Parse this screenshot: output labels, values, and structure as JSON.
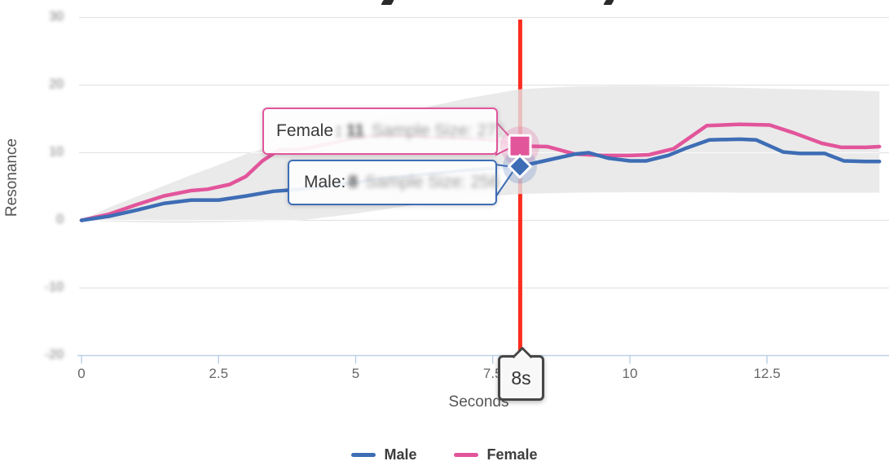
{
  "page": {
    "background": "#ffffff",
    "description": "Line chart of Resonance over Seconds for Male and Female series with confidence band, crosshair at 8 seconds and value tooltips"
  },
  "chart_data": {
    "type": "line",
    "title": "",
    "xlabel": "Seconds",
    "ylabel": "Resonance",
    "xlim": [
      0,
      14.55
    ],
    "ylim": [
      -20,
      30
    ],
    "grid": true,
    "legend_position": "bottom",
    "x_ticks": [
      {
        "label": "0",
        "value": 0
      },
      {
        "label": "2.5",
        "value": 2.5
      },
      {
        "label": "5",
        "value": 5
      },
      {
        "label": "7.5",
        "value": 7.5
      },
      {
        "label": "10",
        "value": 10
      },
      {
        "label": "12.5",
        "value": 12.5
      }
    ],
    "y_ticks": [
      {
        "label": "30",
        "value": 30
      },
      {
        "label": "20",
        "value": 20
      },
      {
        "label": "10",
        "value": 10
      },
      {
        "label": "0",
        "value": 0
      },
      {
        "label": "-10",
        "value": -10
      },
      {
        "label": "-20",
        "value": -20
      }
    ],
    "series": [
      {
        "name": "Male",
        "color": "#3e6db5",
        "x": [
          0,
          0.5,
          1,
          1.5,
          2,
          2.5,
          3,
          3.5,
          4,
          4.5,
          5,
          5.5,
          6,
          6.5,
          7,
          7.5,
          8,
          8.5,
          9,
          9.25,
          9.6,
          10,
          10.3,
          10.7,
          11,
          11.45,
          12,
          12.3,
          12.8,
          13.1,
          13.55,
          13.9,
          14.3,
          14.55
        ],
        "values": [
          0,
          0.6,
          1.5,
          2.5,
          3.0,
          3.0,
          3.6,
          4.3,
          4.6,
          5.1,
          5.6,
          6.2,
          6.6,
          7.0,
          7.4,
          7.7,
          8.0,
          8.9,
          9.8,
          10.0,
          9.2,
          8.8,
          8.8,
          9.6,
          10.6,
          11.9,
          12.0,
          11.9,
          10.1,
          9.9,
          9.9,
          8.8,
          8.7,
          8.7
        ]
      },
      {
        "name": "Female",
        "color": "#e2559b",
        "x": [
          0,
          0.5,
          1,
          1.5,
          2,
          2.3,
          2.7,
          3,
          3.3,
          3.6,
          4,
          4.5,
          5,
          5.5,
          6,
          6.5,
          7,
          7.5,
          8,
          8.5,
          9,
          9.5,
          10,
          10.35,
          10.8,
          11.4,
          12,
          12.55,
          13,
          13.5,
          13.85,
          14.3,
          14.55
        ],
        "values": [
          0,
          0.9,
          2.3,
          3.6,
          4.4,
          4.6,
          5.3,
          6.5,
          8.8,
          10.4,
          10.5,
          11.3,
          12.2,
          12.6,
          12.5,
          12.2,
          12.1,
          11.9,
          11,
          10.9,
          9.8,
          9.6,
          9.6,
          9.7,
          10.6,
          14.0,
          14.2,
          14.1,
          12.9,
          11.4,
          10.8,
          10.8,
          10.9
        ]
      }
    ],
    "confidence_band": {
      "color": "#e9e9e9",
      "x": [
        0,
        0.5,
        1,
        1.5,
        2,
        2.5,
        3,
        3.5,
        4,
        5,
        6,
        7,
        8,
        9,
        10,
        11,
        12,
        13,
        14,
        14.55
      ],
      "high": [
        0,
        1.9,
        3.5,
        5.1,
        6.7,
        8.2,
        9.8,
        11.0,
        12.2,
        14.2,
        16.2,
        18.0,
        19.4,
        19.8,
        19.9,
        19.8,
        19.6,
        19.4,
        19.2,
        19.1
      ],
      "low": [
        0,
        -0.2,
        -0.3,
        -0.35,
        -0.35,
        -0.3,
        -0.2,
        -0.1,
        0.0,
        1.0,
        2.2,
        3.3,
        3.9,
        4.1,
        4.15,
        4.15,
        4.1,
        4.1,
        4.1,
        4.1
      ]
    },
    "crosshair": {
      "x": 8,
      "label": "8s",
      "color": "#fb2c1f"
    },
    "hover_points": [
      {
        "series": "Female",
        "x": 8,
        "value": 11,
        "sample_size": 271
      },
      {
        "series": "Male",
        "x": 8,
        "value": 8,
        "sample_size": 256
      }
    ]
  },
  "tooltips": {
    "female": {
      "label": "Female",
      "value": ": 11",
      "sample": "Sample Size: 271"
    },
    "male": {
      "label": "Male:",
      "value": "8",
      "sample": "Sample Size: 256"
    }
  },
  "legend": {
    "items": [
      {
        "label": "Male",
        "color": "#3e6db5"
      },
      {
        "label": "Female",
        "color": "#e2559b"
      }
    ]
  }
}
